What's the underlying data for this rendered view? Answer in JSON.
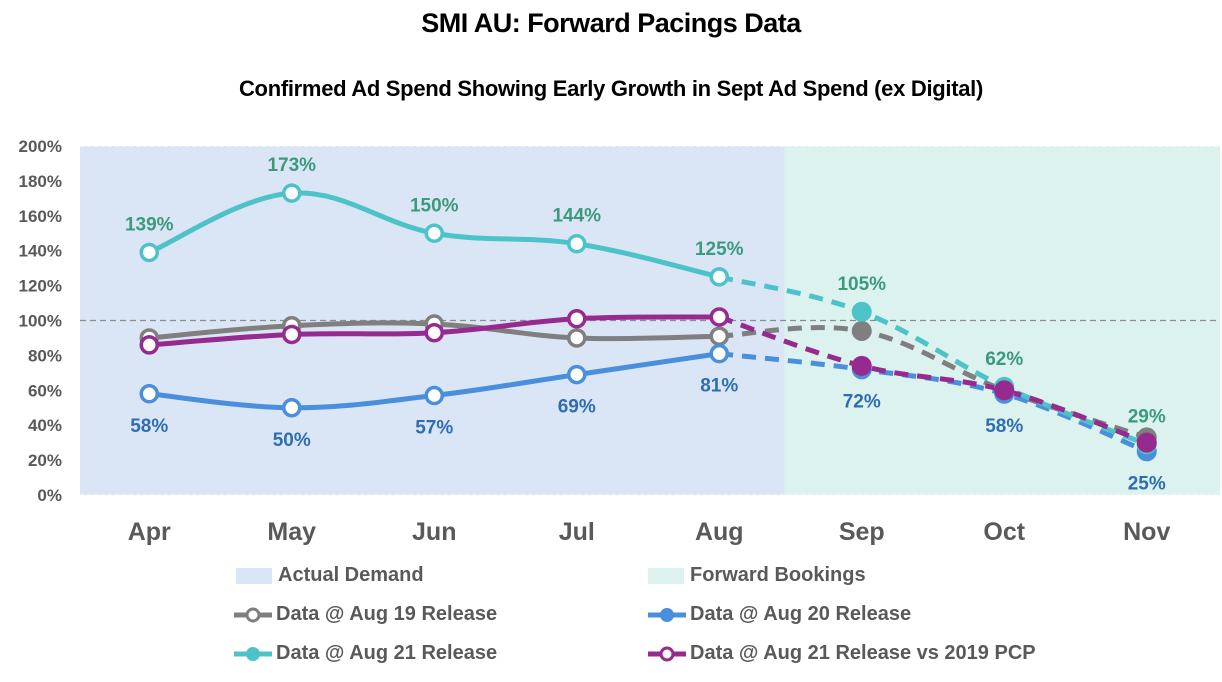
{
  "chart_data": {
    "type": "line",
    "title": "SMI AU: Forward Pacings Data",
    "subtitle": "Confirmed Ad Spend Showing Early Growth in Sept Ad Spend (ex Digital)",
    "xlabel": "",
    "ylabel": "",
    "categories": [
      "Apr",
      "May",
      "Jun",
      "Jul",
      "Aug",
      "Sep",
      "Oct",
      "Nov"
    ],
    "ylim": [
      0,
      200
    ],
    "yticks": [
      0,
      20,
      40,
      60,
      80,
      100,
      120,
      140,
      160,
      180,
      200
    ],
    "ytick_labels": [
      "0%",
      "20%",
      "40%",
      "60%",
      "80%",
      "100%",
      "120%",
      "140%",
      "160%",
      "180%",
      "200%"
    ],
    "reference_line": 100,
    "grid": false,
    "regions": [
      {
        "name": "Actual Demand",
        "from": "Apr",
        "to": "Aug",
        "color": "#dae6f5"
      },
      {
        "name": "Forward Bookings",
        "from": "Sep",
        "to": "Nov",
        "color": "#dcf2ee"
      }
    ],
    "actual_through_index": 4,
    "series": [
      {
        "name": "Data @ Aug 19 Release",
        "color": "#7f7f7f",
        "marker": "hollow",
        "values": [
          90,
          97,
          98,
          90,
          91,
          94,
          60,
          33
        ],
        "labels": null
      },
      {
        "name": "Data @ Aug 20 Release",
        "color": "#4a8fdb",
        "marker": "filled",
        "values": [
          58,
          50,
          57,
          69,
          81,
          72,
          58,
          25
        ],
        "labels": [
          "58%",
          "50%",
          "57%",
          "69%",
          "81%",
          "72%",
          "58%",
          "25%"
        ],
        "label_color": "#2f6db3",
        "label_position": "below"
      },
      {
        "name": "Data @ Aug 21 Release",
        "color": "#4dc3c9",
        "marker": "filled",
        "values": [
          139,
          173,
          150,
          144,
          125,
          105,
          62,
          29
        ],
        "labels": [
          "139%",
          "173%",
          "150%",
          "144%",
          "125%",
          "105%",
          "62%",
          "29%"
        ],
        "label_color": "#3c9a7c",
        "label_position": "above"
      },
      {
        "name": "Data @ Aug 21 Release vs 2019 PCP",
        "color": "#962a8f",
        "marker": "hollow",
        "values": [
          86,
          92,
          93,
          101,
          102,
          74,
          60,
          30
        ],
        "labels": null
      }
    ],
    "legend_position": "bottom"
  }
}
